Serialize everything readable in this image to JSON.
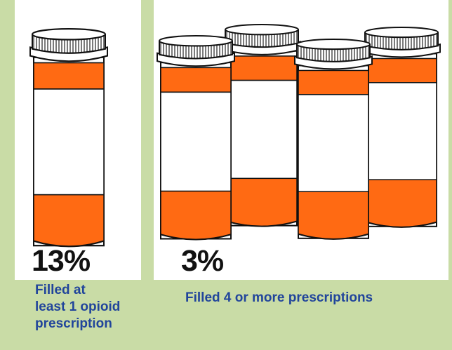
{
  "stats": [
    {
      "percent": "13%",
      "caption_lines": [
        "Filled at",
        "least 1 opioid",
        "prescription"
      ]
    },
    {
      "percent": "3%",
      "caption": "Filled 4 or more prescriptions"
    }
  ],
  "colors": {
    "background": "#c9dca6",
    "panel": "#ffffff",
    "bottle_orange": "#ff6a13",
    "caption_blue": "#21459b"
  },
  "icons": [
    "prescription-bottle-icon"
  ]
}
